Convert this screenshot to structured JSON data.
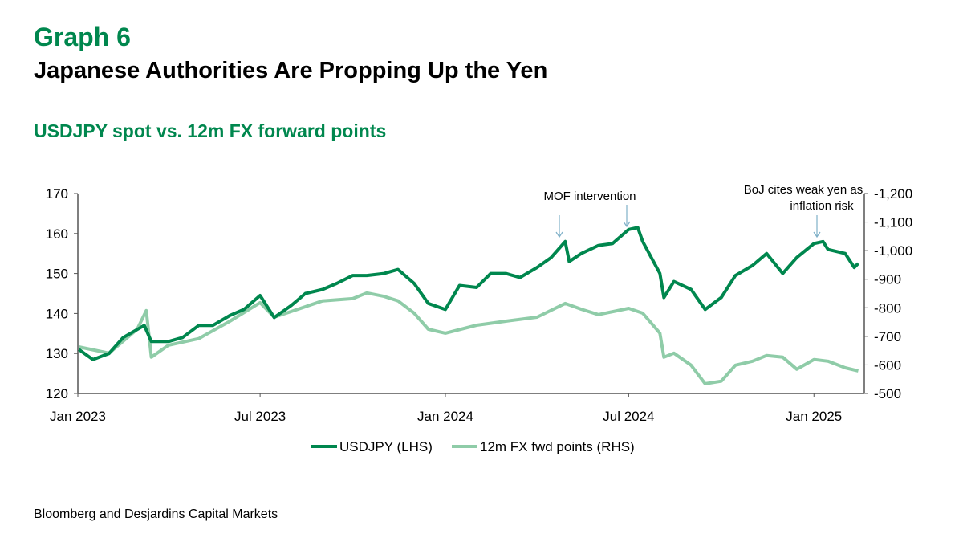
{
  "header": {
    "graph_label": "Graph 6",
    "title": "Japanese Authorities Are Propping Up the Yen",
    "subtitle": "USDJPY spot vs. 12m FX forward points"
  },
  "source": "Bloomberg and Desjardins Capital Markets",
  "chart_data": {
    "type": "line",
    "title": "USDJPY spot vs. 12m FX forward points",
    "x_ticks": [
      "Jan 2023",
      "Jul 2023",
      "Jan 2024",
      "Jul 2024",
      "Jan 2025"
    ],
    "x_tick_dates": [
      "2023-01-01",
      "2023-07-01",
      "2024-01-01",
      "2024-07-01",
      "2025-01-01"
    ],
    "x_range": [
      "2023-01-01",
      "2025-02-20"
    ],
    "left_axis": {
      "ylim": [
        120,
        170
      ],
      "ticks": [
        "120",
        "130",
        "140",
        "150",
        "160",
        "170"
      ]
    },
    "right_axis": {
      "ylim": [
        -500,
        -1200
      ],
      "inverted": true,
      "ticks": [
        "-500",
        "-600",
        "-700",
        "-800",
        "-900",
        "-1,000",
        "-1,100",
        "-1,200"
      ]
    },
    "legend_position": "bottom",
    "grid": false,
    "colors": {
      "usdjpy": "#00874e",
      "fwd": "#8fcca8",
      "annotation": "#7fb0c8"
    },
    "series": [
      {
        "name": "USDJPY (LHS)",
        "axis": "left",
        "points": [
          [
            "2023-01-02",
            131
          ],
          [
            "2023-01-16",
            128.5
          ],
          [
            "2023-02-01",
            130
          ],
          [
            "2023-02-15",
            134
          ],
          [
            "2023-03-01",
            136
          ],
          [
            "2023-03-08",
            137
          ],
          [
            "2023-03-15",
            133
          ],
          [
            "2023-04-01",
            133
          ],
          [
            "2023-04-15",
            134
          ],
          [
            "2023-05-01",
            137
          ],
          [
            "2023-05-15",
            137
          ],
          [
            "2023-06-01",
            139.5
          ],
          [
            "2023-06-15",
            141
          ],
          [
            "2023-07-01",
            144.5
          ],
          [
            "2023-07-15",
            139
          ],
          [
            "2023-08-01",
            142
          ],
          [
            "2023-08-15",
            145
          ],
          [
            "2023-09-01",
            146
          ],
          [
            "2023-09-15",
            147.5
          ],
          [
            "2023-10-01",
            149.5
          ],
          [
            "2023-10-15",
            149.5
          ],
          [
            "2023-11-01",
            150
          ],
          [
            "2023-11-15",
            151
          ],
          [
            "2023-12-01",
            147.5
          ],
          [
            "2023-12-15",
            142.5
          ],
          [
            "2024-01-01",
            141
          ],
          [
            "2024-01-15",
            147
          ],
          [
            "2024-02-01",
            146.5
          ],
          [
            "2024-02-15",
            150
          ],
          [
            "2024-03-01",
            150
          ],
          [
            "2024-03-15",
            149
          ],
          [
            "2024-04-01",
            151.5
          ],
          [
            "2024-04-15",
            154
          ],
          [
            "2024-04-29",
            158
          ],
          [
            "2024-05-03",
            153
          ],
          [
            "2024-05-15",
            155
          ],
          [
            "2024-06-01",
            157
          ],
          [
            "2024-06-15",
            157.5
          ],
          [
            "2024-07-01",
            161
          ],
          [
            "2024-07-10",
            161.5
          ],
          [
            "2024-07-15",
            158
          ],
          [
            "2024-08-01",
            150
          ],
          [
            "2024-08-05",
            144
          ],
          [
            "2024-08-15",
            148
          ],
          [
            "2024-09-01",
            146
          ],
          [
            "2024-09-15",
            141
          ],
          [
            "2024-10-01",
            144
          ],
          [
            "2024-10-15",
            149.5
          ],
          [
            "2024-11-01",
            152
          ],
          [
            "2024-11-15",
            155
          ],
          [
            "2024-12-01",
            150
          ],
          [
            "2024-12-15",
            154
          ],
          [
            "2025-01-01",
            157.5
          ],
          [
            "2025-01-10",
            158
          ],
          [
            "2025-01-15",
            156
          ],
          [
            "2025-02-01",
            155
          ],
          [
            "2025-02-10",
            151.5
          ],
          [
            "2025-02-14",
            152.5
          ]
        ]
      },
      {
        "name": "12m FX fwd points (RHS)",
        "axis": "right",
        "points": [
          [
            "2023-01-02",
            -663
          ],
          [
            "2023-02-01",
            -641
          ],
          [
            "2023-03-01",
            -725
          ],
          [
            "2023-03-10",
            -790
          ],
          [
            "2023-03-15",
            -627
          ],
          [
            "2023-04-01",
            -669
          ],
          [
            "2023-05-01",
            -692
          ],
          [
            "2023-06-01",
            -753
          ],
          [
            "2023-07-01",
            -818
          ],
          [
            "2023-07-15",
            -767
          ],
          [
            "2023-08-01",
            -787
          ],
          [
            "2023-09-01",
            -824
          ],
          [
            "2023-10-01",
            -832
          ],
          [
            "2023-10-15",
            -852
          ],
          [
            "2023-11-01",
            -840
          ],
          [
            "2023-11-15",
            -824
          ],
          [
            "2023-12-01",
            -781
          ],
          [
            "2023-12-15",
            -725
          ],
          [
            "2024-01-01",
            -711
          ],
          [
            "2024-02-01",
            -739
          ],
          [
            "2024-03-01",
            -753
          ],
          [
            "2024-04-01",
            -767
          ],
          [
            "2024-04-29",
            -815
          ],
          [
            "2024-05-15",
            -795
          ],
          [
            "2024-06-01",
            -776
          ],
          [
            "2024-07-01",
            -798
          ],
          [
            "2024-07-15",
            -781
          ],
          [
            "2024-08-01",
            -711
          ],
          [
            "2024-08-05",
            -627
          ],
          [
            "2024-08-15",
            -641
          ],
          [
            "2024-09-01",
            -599
          ],
          [
            "2024-09-15",
            -534
          ],
          [
            "2024-10-01",
            -543
          ],
          [
            "2024-10-15",
            -599
          ],
          [
            "2024-11-01",
            -613
          ],
          [
            "2024-11-15",
            -633
          ],
          [
            "2024-12-01",
            -627
          ],
          [
            "2024-12-15",
            -585
          ],
          [
            "2025-01-01",
            -619
          ],
          [
            "2025-01-15",
            -613
          ],
          [
            "2025-02-01",
            -590
          ],
          [
            "2025-02-14",
            -579
          ]
        ]
      }
    ],
    "annotations": [
      {
        "text": "MOF intervention",
        "dates": [
          "2024-04-29",
          "2024-07-10"
        ]
      },
      {
        "text_line1": "BoJ cites weak yen as",
        "text_line2": "inflation risk",
        "date": "2025-01-10"
      }
    ]
  }
}
